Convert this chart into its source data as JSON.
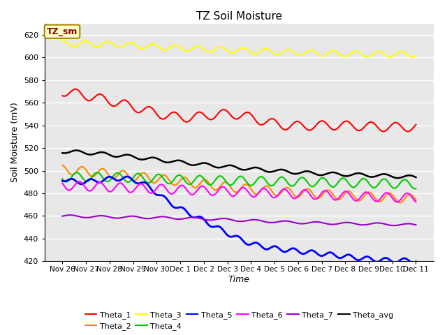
{
  "title": "TZ Soil Moisture",
  "xlabel": "Time",
  "ylabel": "Soil Moisture (mV)",
  "annotation": "TZ_sm",
  "ylim": [
    420,
    630
  ],
  "yticks": [
    420,
    440,
    460,
    480,
    500,
    520,
    540,
    560,
    580,
    600,
    620
  ],
  "x_labels": [
    "Nov 26",
    "Nov 27",
    "Nov 28",
    "Nov 29",
    "Nov 30",
    "Dec 1",
    "Dec 2",
    "Dec 3",
    "Dec 4",
    "Dec 5",
    "Dec 6",
    "Dec 7",
    "Dec 8",
    "Dec 9",
    "Dec 10",
    "Dec 11"
  ],
  "background_color": "#e8e8e8",
  "series_order": [
    "Theta_1",
    "Theta_2",
    "Theta_3",
    "Theta_4",
    "Theta_5",
    "Theta_6",
    "Theta_7",
    "Theta_avg"
  ],
  "series": {
    "Theta_1": {
      "color": "#ff0000",
      "control_points_x": [
        0,
        30,
        75,
        120,
        165,
        210,
        255,
        300,
        345
      ],
      "control_points_y": [
        570,
        565,
        555,
        547,
        550,
        541,
        540,
        539,
        539
      ],
      "amplitude": 4,
      "period": 24,
      "lw": 1.5
    },
    "Theta_2": {
      "color": "#ff8800",
      "control_points_x": [
        0,
        60,
        120,
        180,
        240,
        300,
        345
      ],
      "control_points_y": [
        501,
        496,
        490,
        484,
        480,
        477,
        475
      ],
      "amplitude": 4,
      "period": 20,
      "lw": 1.5
    },
    "Theta_3": {
      "color": "#ffff00",
      "control_points_x": [
        0,
        60,
        120,
        180,
        240,
        300,
        345
      ],
      "control_points_y": [
        612,
        611,
        608,
        606,
        604,
        603,
        603
      ],
      "amplitude": 2.5,
      "period": 22,
      "lw": 1.5
    },
    "Theta_4": {
      "color": "#00cc00",
      "control_points_x": [
        0,
        60,
        120,
        180,
        240,
        300,
        345
      ],
      "control_points_y": [
        494,
        494,
        492,
        491,
        490,
        489,
        488
      ],
      "amplitude": 4,
      "period": 20,
      "lw": 1.5
    },
    "Theta_5": {
      "color": "#0000ff",
      "control_points_x": [
        0,
        40,
        80,
        100,
        140,
        180,
        220,
        260,
        300,
        345
      ],
      "control_points_y": [
        493,
        492,
        488,
        475,
        455,
        437,
        430,
        426,
        422,
        421
      ],
      "amplitude": 2,
      "period": 18,
      "lw": 2.0
    },
    "Theta_6": {
      "color": "#ff00ff",
      "control_points_x": [
        0,
        60,
        120,
        180,
        240,
        300,
        345
      ],
      "control_points_y": [
        487,
        485,
        483,
        481,
        479,
        477,
        476
      ],
      "amplitude": 4,
      "period": 20,
      "lw": 1.5
    },
    "Theta_7": {
      "color": "#9900cc",
      "control_points_x": [
        0,
        60,
        120,
        180,
        240,
        300,
        345
      ],
      "control_points_y": [
        460,
        459,
        458,
        456,
        454,
        453,
        452
      ],
      "amplitude": 1.0,
      "period": 30,
      "lw": 1.5
    },
    "Theta_avg": {
      "color": "#000000",
      "control_points_x": [
        0,
        60,
        120,
        180,
        240,
        300,
        345
      ],
      "control_points_y": [
        517,
        513,
        507,
        502,
        498,
        496,
        494
      ],
      "amplitude": 1.5,
      "period": 25,
      "lw": 1.8
    }
  }
}
